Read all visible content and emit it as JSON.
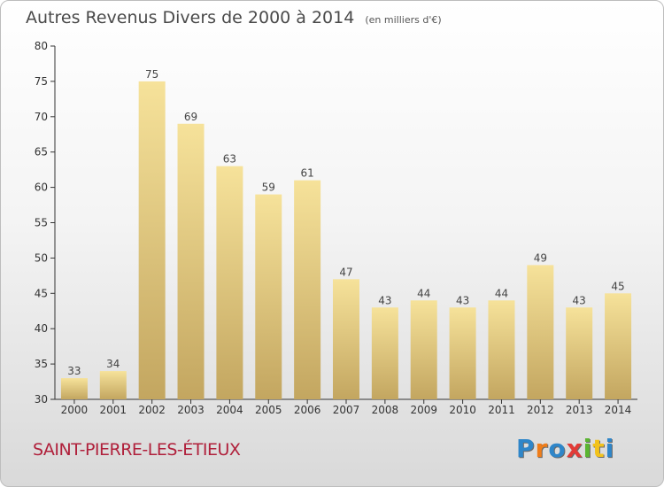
{
  "header": {
    "title": "Autres Revenus Divers de 2000 à 2014",
    "unit": "(en milliers d'€)"
  },
  "footer": {
    "location": "SAINT-PIERRE-LES-ÉTIEUX",
    "logo_letters": [
      "P",
      "r",
      "o",
      "x",
      "i",
      "t",
      "i"
    ],
    "logo_colors": [
      "#2f86c9",
      "#ef7d1a",
      "#2f86c9",
      "#e23b37",
      "#5ab531",
      "#f2c21c",
      "#2f86c9"
    ]
  },
  "colors": {
    "bar_top": "#f6e29a",
    "bar_bottom": "#c3a660",
    "axis": "#333333"
  },
  "chart_data": {
    "type": "bar",
    "title": "Autres Revenus Divers de 2000 à 2014",
    "subtitle": "(en milliers d'€)",
    "xlabel": "",
    "ylabel": "",
    "categories": [
      "2000",
      "2001",
      "2002",
      "2003",
      "2004",
      "2005",
      "2006",
      "2007",
      "2008",
      "2009",
      "2010",
      "2011",
      "2012",
      "2013",
      "2014"
    ],
    "values": [
      33,
      34,
      75,
      69,
      63,
      59,
      61,
      47,
      43,
      44,
      43,
      44,
      49,
      43,
      45
    ],
    "ylim": [
      30,
      80
    ],
    "yticks": [
      30,
      35,
      40,
      45,
      50,
      55,
      60,
      65,
      70,
      75,
      80
    ],
    "grid": false,
    "data_labels": true
  }
}
